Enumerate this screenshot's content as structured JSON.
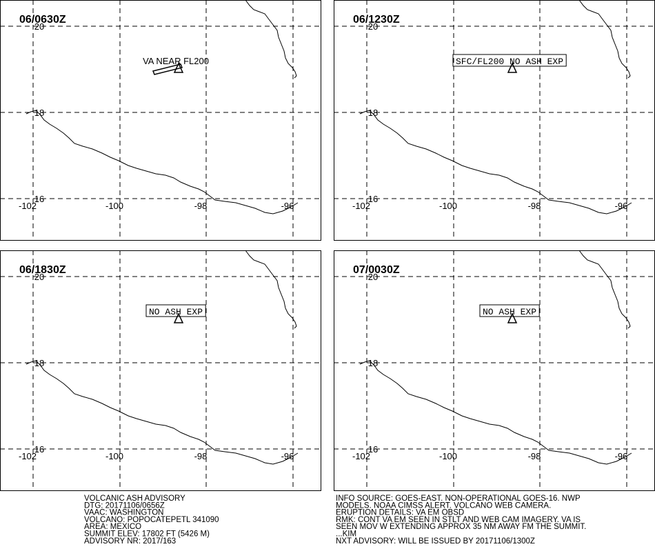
{
  "lon_labels": [
    "-102",
    "-100",
    "-98",
    "-96"
  ],
  "lat_labels": [
    "20",
    "18",
    "16"
  ],
  "panels": [
    {
      "time": "06/0630Z",
      "annotation": "VA NEAR FL200"
    },
    {
      "time": "06/1230Z",
      "annotation": "SFC/FL200 NO ASH EXP"
    },
    {
      "time": "06/1830Z",
      "annotation": "NO ASH EXP"
    },
    {
      "time": "07/0030Z",
      "annotation": "NO ASH EXP"
    }
  ],
  "advisory_left": [
    "VOLCANIC ASH ADVISORY",
    "DTG: 20171106/0656Z",
    "VAAC: WASHINGTON",
    "VOLCANO: POPOCATEPETL 341090",
    "AREA: MEXICO",
    "SUMMIT ELEV: 17802 FT (5426 M)",
    "ADVISORY NR: 2017/163"
  ],
  "advisory_right": [
    "INFO SOURCE: GOES-EAST. NON-OPERATIONAL GOES-16. NWP",
    "MODELS. NOAA CIMSS ALERT. VOLCANO WEB CAMERA.",
    "ERUPTION DETAILS: VA EM OBSD",
    "RMK: CONT VA EM SEEN IN STLT AND WEB CAM IMAGERY. VA IS",
    "SEEN MOV W EXTENDING APPROX 35 NM AWAY FM THE SUMMIT.",
    "...KIM",
    "NXT ADVISORY: WILL BE ISSUED BY 20171106/1300Z"
  ]
}
